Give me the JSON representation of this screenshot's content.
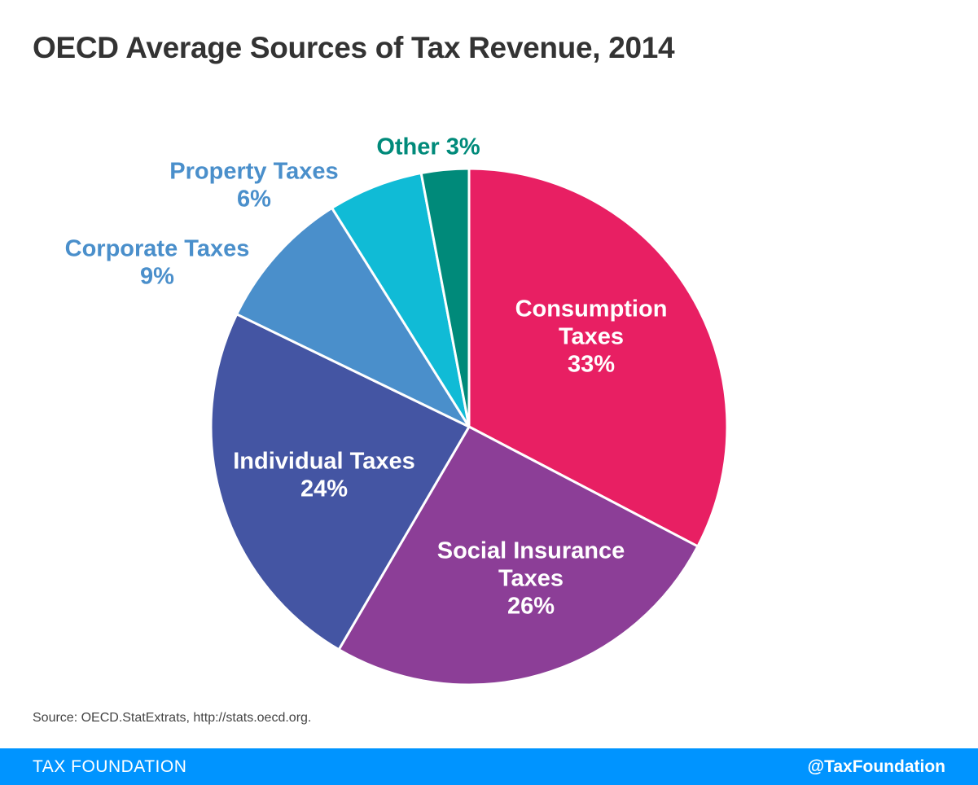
{
  "title": "OECD Average Sources of Tax Revenue, 2014",
  "source": "Source: OECD.StatExtrats, http://stats.oecd.org.",
  "footer": {
    "brand": "TAX FOUNDATION",
    "handle": "@TaxFoundation"
  },
  "chart_data": {
    "type": "pie",
    "start": "12 o'clock",
    "direction": "clockwise",
    "title": "OECD Average Sources of Tax Revenue, 2014",
    "slices": [
      {
        "label_lines": [
          "Consumption",
          "Taxes"
        ],
        "value_label": "33%",
        "value": 33,
        "color": "#e81f63"
      },
      {
        "label_lines": [
          "Social Insurance",
          "Taxes"
        ],
        "value_label": "26%",
        "value": 26,
        "color": "#8c3e97"
      },
      {
        "label_lines": [
          "Individual Taxes"
        ],
        "value_label": "24%",
        "value": 24,
        "color": "#4455a3"
      },
      {
        "label_lines": [
          "Corporate Taxes"
        ],
        "value_label": "9%",
        "value": 9,
        "color": "#4a8fcb"
      },
      {
        "label_lines": [
          "Property Taxes"
        ],
        "value_label": "6%",
        "value": 6,
        "color": "#10bbd6"
      },
      {
        "label_lines": [
          "Other"
        ],
        "value_label": "3%",
        "value": 3,
        "color": "#008a7a"
      }
    ]
  }
}
